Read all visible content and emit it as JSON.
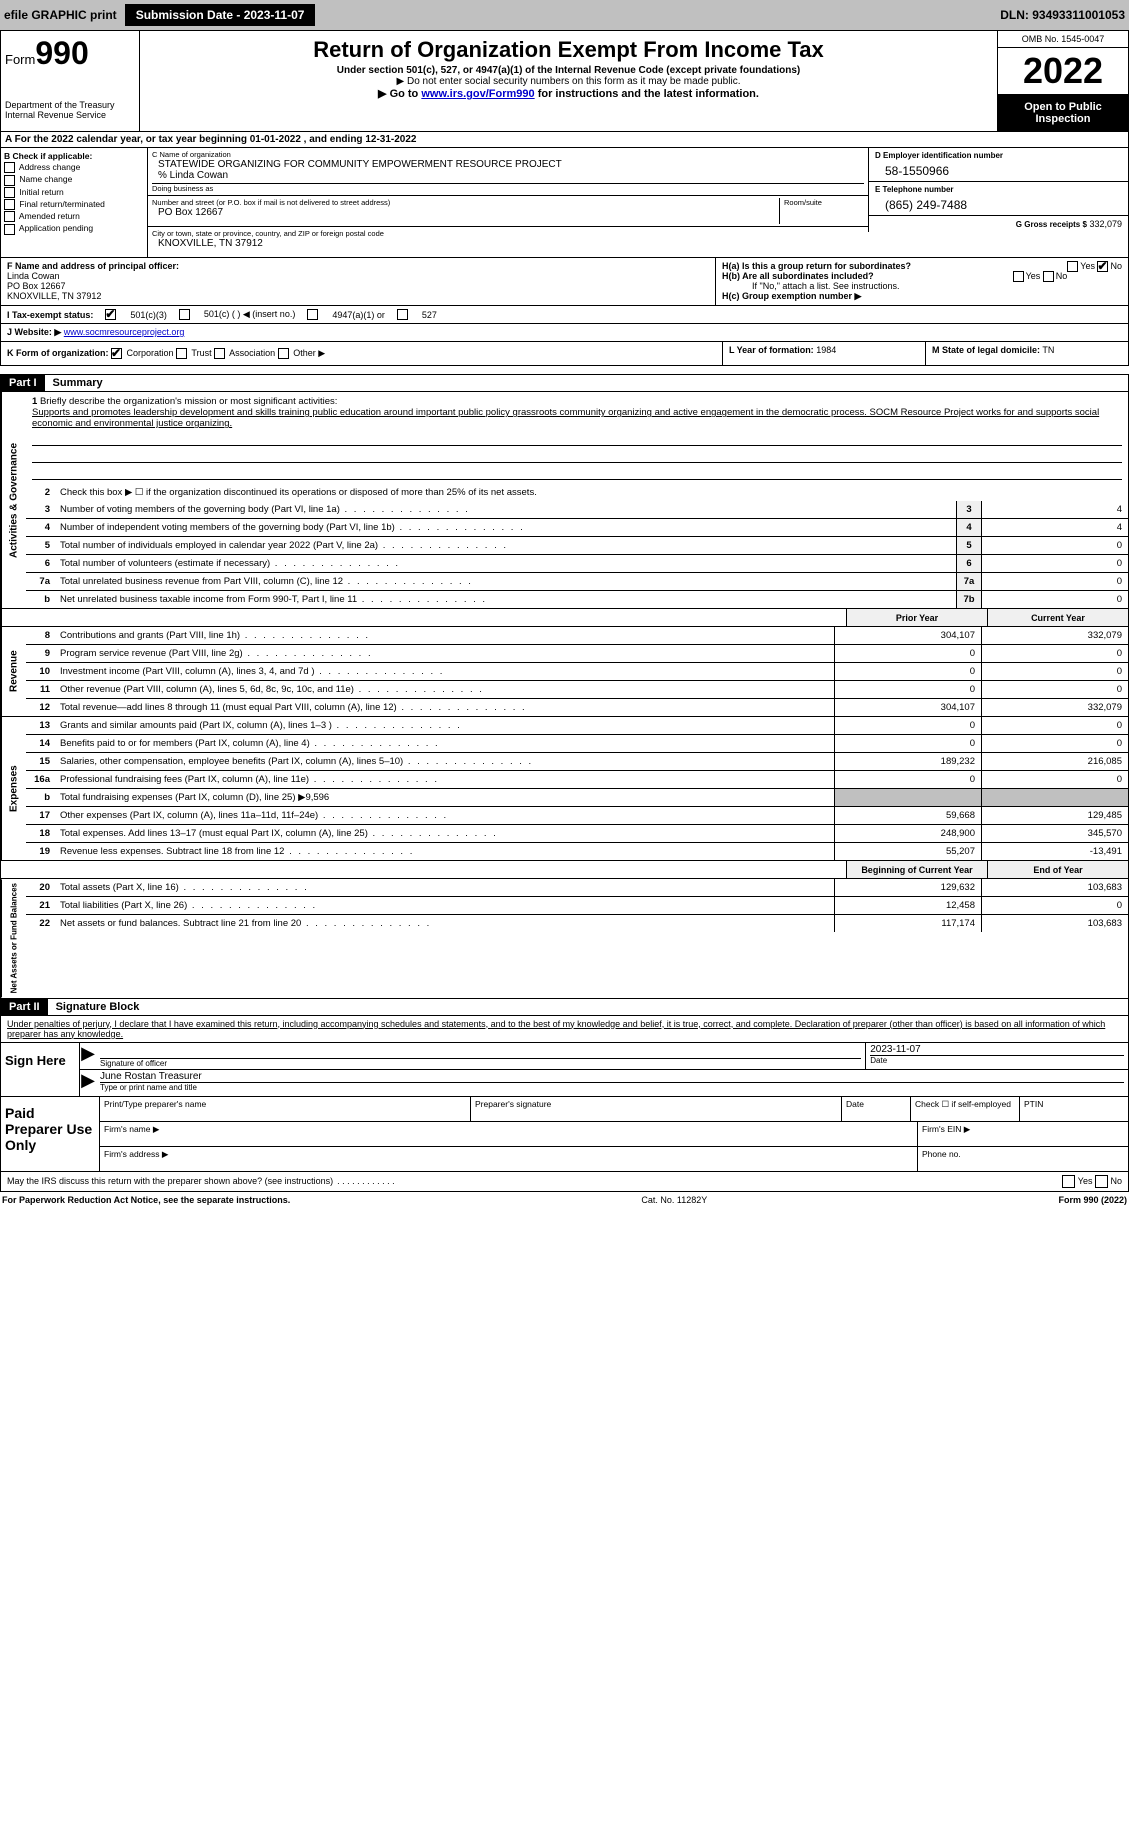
{
  "top_bar": {
    "efile_label": "efile GRAPHIC print",
    "submission_label": "Submission Date - 2023-11-07",
    "dln": "DLN: 93493311001053"
  },
  "header": {
    "form_prefix": "Form",
    "form_number": "990",
    "dept": "Department of the Treasury",
    "irs": "Internal Revenue Service",
    "title": "Return of Organization Exempt From Income Tax",
    "subtitle": "Under section 501(c), 527, or 4947(a)(1) of the Internal Revenue Code (except private foundations)",
    "note1": "▶ Do not enter social security numbers on this form as it may be made public.",
    "note2": "▶ Go to www.irs.gov/Form990 for instructions and the latest information.",
    "link": "www.irs.gov/Form990",
    "omb": "OMB No. 1545-0047",
    "year": "2022",
    "open": "Open to Public Inspection"
  },
  "period": {
    "line": "A For the 2022 calendar year, or tax year beginning 01-01-2022    , and ending 12-31-2022"
  },
  "section_b": {
    "label": "B Check if applicable:",
    "items": [
      "Address change",
      "Name change",
      "Initial return",
      "Final return/terminated",
      "Amended return",
      "Application pending"
    ]
  },
  "section_c": {
    "name_label": "C Name of organization",
    "name": "STATEWIDE ORGANIZING FOR COMMUNITY EMPOWERMENT RESOURCE PROJECT",
    "care_of": "% Linda Cowan",
    "dba_label": "Doing business as",
    "street_label": "Number and street (or P.O. box if mail is not delivered to street address)",
    "room_label": "Room/suite",
    "street": "PO Box 12667",
    "city_label": "City or town, state or province, country, and ZIP or foreign postal code",
    "city": "KNOXVILLE, TN  37912"
  },
  "section_d": {
    "ein_label": "D Employer identification number",
    "ein": "58-1550966",
    "phone_label": "E Telephone number",
    "phone": "(865) 249-7488",
    "gross_label": "G Gross receipts $",
    "gross": "332,079"
  },
  "section_f": {
    "label": "F Name and address of principal officer:",
    "name": "Linda Cowan",
    "street": "PO Box 12667",
    "city": "KNOXVILLE, TN  37912"
  },
  "section_h": {
    "ha": "H(a) Is this a group return for subordinates?",
    "hb": "H(b) Are all subordinates included?",
    "hb_note": "If \"No,\" attach a list. See instructions.",
    "hc": "H(c) Group exemption number ▶",
    "yes": "Yes",
    "no": "No"
  },
  "section_i": {
    "label": "I Tax-exempt status:",
    "opt1": "501(c)(3)",
    "opt2": "501(c) (   ) ◀ (insert no.)",
    "opt3": "4947(a)(1) or",
    "opt4": "527"
  },
  "section_j": {
    "label": "J Website: ▶",
    "value": "www.socmresourceproject.org"
  },
  "section_k": {
    "label": "K Form of organization:",
    "opts": [
      "Corporation",
      "Trust",
      "Association",
      "Other ▶"
    ]
  },
  "section_l": {
    "label": "L Year of formation:",
    "value": "1984"
  },
  "section_m": {
    "label": "M State of legal domicile:",
    "value": "TN"
  },
  "part1": {
    "header": "Part I",
    "title": "Summary"
  },
  "governance": {
    "side": "Activities & Governance",
    "q1": "Briefly describe the organization's mission or most significant activities:",
    "mission": "Supports and promotes leadership development and skills training public education around important public policy grassroots community organizing and active engagement in the democratic process. SOCM Resource Project works for and supports social economic and environmental justice organizing.",
    "q2": "Check this box ▶ ☐ if the organization discontinued its operations or disposed of more than 25% of its net assets.",
    "rows": [
      {
        "n": "3",
        "d": "Number of voting members of the governing body (Part VI, line 1a)",
        "c": "3",
        "v": "4"
      },
      {
        "n": "4",
        "d": "Number of independent voting members of the governing body (Part VI, line 1b)",
        "c": "4",
        "v": "4"
      },
      {
        "n": "5",
        "d": "Total number of individuals employed in calendar year 2022 (Part V, line 2a)",
        "c": "5",
        "v": "0"
      },
      {
        "n": "6",
        "d": "Total number of volunteers (estimate if necessary)",
        "c": "6",
        "v": "0"
      },
      {
        "n": "7a",
        "d": "Total unrelated business revenue from Part VIII, column (C), line 12",
        "c": "7a",
        "v": "0"
      },
      {
        "n": "b",
        "d": "Net unrelated business taxable income from Form 990-T, Part I, line 11",
        "c": "7b",
        "v": "0"
      }
    ]
  },
  "two_col_header": {
    "prior": "Prior Year",
    "current": "Current Year"
  },
  "revenue": {
    "side": "Revenue",
    "rows": [
      {
        "n": "8",
        "d": "Contributions and grants (Part VIII, line 1h)",
        "p": "304,107",
        "c": "332,079"
      },
      {
        "n": "9",
        "d": "Program service revenue (Part VIII, line 2g)",
        "p": "0",
        "c": "0"
      },
      {
        "n": "10",
        "d": "Investment income (Part VIII, column (A), lines 3, 4, and 7d )",
        "p": "0",
        "c": "0"
      },
      {
        "n": "11",
        "d": "Other revenue (Part VIII, column (A), lines 5, 6d, 8c, 9c, 10c, and 11e)",
        "p": "0",
        "c": "0"
      },
      {
        "n": "12",
        "d": "Total revenue—add lines 8 through 11 (must equal Part VIII, column (A), line 12)",
        "p": "304,107",
        "c": "332,079"
      }
    ]
  },
  "expenses": {
    "side": "Expenses",
    "rows": [
      {
        "n": "13",
        "d": "Grants and similar amounts paid (Part IX, column (A), lines 1–3 )",
        "p": "0",
        "c": "0"
      },
      {
        "n": "14",
        "d": "Benefits paid to or for members (Part IX, column (A), line 4)",
        "p": "0",
        "c": "0"
      },
      {
        "n": "15",
        "d": "Salaries, other compensation, employee benefits (Part IX, column (A), lines 5–10)",
        "p": "189,232",
        "c": "216,085"
      },
      {
        "n": "16a",
        "d": "Professional fundraising fees (Part IX, column (A), line 11e)",
        "p": "0",
        "c": "0"
      }
    ],
    "row_b": {
      "n": "b",
      "d": "Total fundraising expenses (Part IX, column (D), line 25) ▶9,596"
    },
    "rows2": [
      {
        "n": "17",
        "d": "Other expenses (Part IX, column (A), lines 11a–11d, 11f–24e)",
        "p": "59,668",
        "c": "129,485"
      },
      {
        "n": "18",
        "d": "Total expenses. Add lines 13–17 (must equal Part IX, column (A), line 25)",
        "p": "248,900",
        "c": "345,570"
      },
      {
        "n": "19",
        "d": "Revenue less expenses. Subtract line 18 from line 12",
        "p": "55,207",
        "c": "-13,491"
      }
    ]
  },
  "netassets_header": {
    "prior": "Beginning of Current Year",
    "current": "End of Year"
  },
  "netassets": {
    "side": "Net Assets or Fund Balances",
    "rows": [
      {
        "n": "20",
        "d": "Total assets (Part X, line 16)",
        "p": "129,632",
        "c": "103,683"
      },
      {
        "n": "21",
        "d": "Total liabilities (Part X, line 26)",
        "p": "12,458",
        "c": "0"
      },
      {
        "n": "22",
        "d": "Net assets or fund balances. Subtract line 21 from line 20",
        "p": "117,174",
        "c": "103,683"
      }
    ]
  },
  "part2": {
    "header": "Part II",
    "title": "Signature Block",
    "penalty": "Under penalties of perjury, I declare that I have examined this return, including accompanying schedules and statements, and to the best of my knowledge and belief, it is true, correct, and complete. Declaration of preparer (other than officer) is based on all information of which preparer has any knowledge."
  },
  "sign": {
    "left": "Sign Here",
    "sig_label": "Signature of officer",
    "date_label": "Date",
    "date": "2023-11-07",
    "name": "June Rostan Treasurer",
    "name_label": "Type or print name and title"
  },
  "preparer": {
    "left": "Paid Preparer Use Only",
    "h1": "Print/Type preparer's name",
    "h2": "Preparer's signature",
    "h3": "Date",
    "h4": "Check ☐ if self-employed",
    "h5": "PTIN",
    "firm_name": "Firm's name ▶",
    "firm_ein": "Firm's EIN ▶",
    "firm_addr": "Firm's address ▶",
    "phone": "Phone no."
  },
  "footer": {
    "discuss": "May the IRS discuss this return with the preparer shown above? (see instructions)",
    "yes": "Yes",
    "no": "No",
    "paperwork": "For Paperwork Reduction Act Notice, see the separate instructions.",
    "cat": "Cat. No. 11282Y",
    "form": "Form 990 (2022)"
  },
  "colors": {
    "topbar_bg": "#c0c0c0",
    "black": "#000000",
    "white": "#ffffff",
    "link": "#0000cc",
    "shaded": "#f0f0f0"
  }
}
